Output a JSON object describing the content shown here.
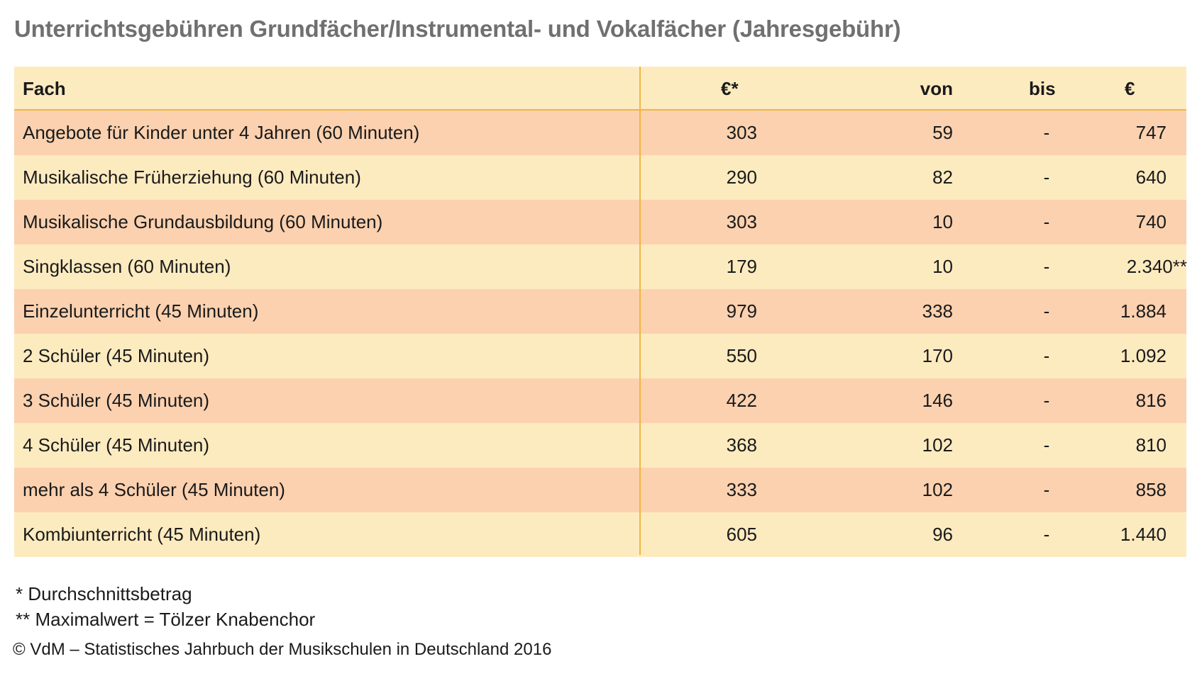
{
  "title": "Unterrichtsgebühren Grundfächer/Instrumental- und Vokalfächer (Jahresgebühr)",
  "colors": {
    "title": "#707070",
    "header_bg": "#fdebc0",
    "row_odd": "#fbd1af",
    "row_even": "#fdebc0",
    "rule": "#f0b545"
  },
  "chart_data": {
    "type": "table",
    "columns": [
      "Fach",
      "€*",
      "von",
      "bis",
      "€"
    ],
    "rows": [
      {
        "fach": "Angebote für Kinder unter 4 Jahren (60 Minuten)",
        "avg": "303",
        "von": "59",
        "dash": "-",
        "bis": "747"
      },
      {
        "fach": "Musikalische Früherziehung (60 Minuten)",
        "avg": "290",
        "von": "82",
        "dash": "-",
        "bis": "640"
      },
      {
        "fach": "Musikalische Grundausbildung (60 Minuten)",
        "avg": "303",
        "von": "10",
        "dash": "-",
        "bis": "740"
      },
      {
        "fach": "Singklassen (60 Minuten)",
        "avg": "179",
        "von": "10",
        "dash": "-",
        "bis": "2.340**"
      },
      {
        "fach": "Einzelunterricht (45 Minuten)",
        "avg": "979",
        "von": "338",
        "dash": "-",
        "bis": "1.884"
      },
      {
        "fach": "2 Schüler (45 Minuten)",
        "avg": "550",
        "von": "170",
        "dash": "-",
        "bis": "1.092"
      },
      {
        "fach": "3 Schüler (45 Minuten)",
        "avg": "422",
        "von": "146",
        "dash": "-",
        "bis": "816"
      },
      {
        "fach": "4 Schüler (45 Minuten)",
        "avg": "368",
        "von": "102",
        "dash": "-",
        "bis": "810"
      },
      {
        "fach": "mehr als 4 Schüler (45 Minuten)",
        "avg": "333",
        "von": "102",
        "dash": "-",
        "bis": "858"
      },
      {
        "fach": "Kombiunterricht (45 Minuten)",
        "avg": "605",
        "von": "96",
        "dash": "-",
        "bis": "1.440"
      }
    ]
  },
  "notes": [
    "* Durchschnittsbetrag",
    "** Maximalwert = Tölzer Knabenchor"
  ],
  "source": "© VdM – Statistisches Jahrbuch der Musikschulen in Deutschland 2016"
}
